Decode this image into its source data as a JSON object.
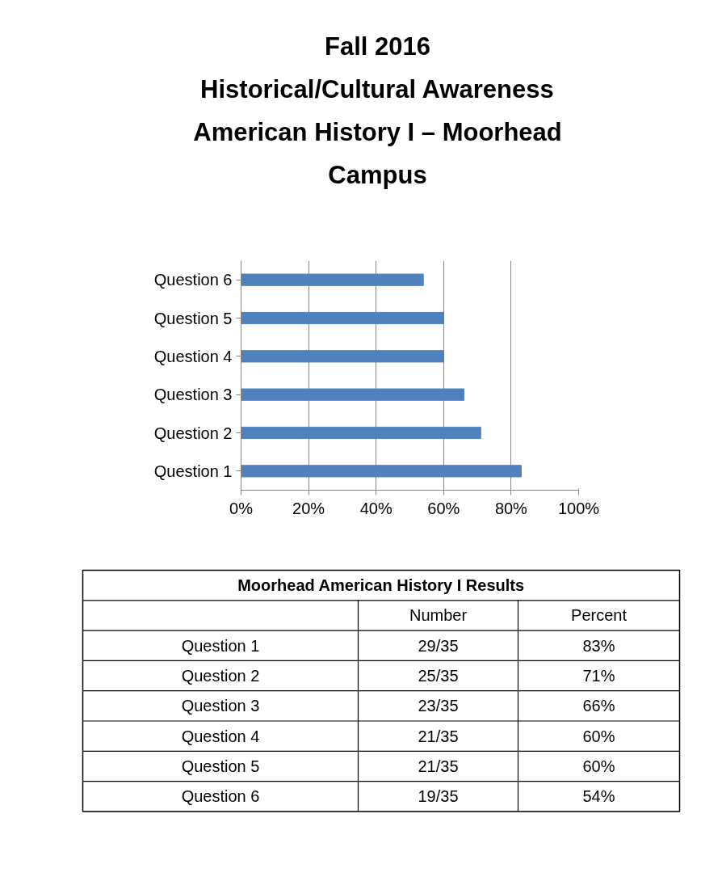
{
  "chart_data": {
    "type": "bar",
    "orientation": "horizontal",
    "title": "Fall 2016\nHistorical/Cultural Awareness\nAmerican History I – Moorhead\nCampus",
    "categories": [
      "Question 6",
      "Question 5",
      "Question 4",
      "Question 3",
      "Question 2",
      "Question 1"
    ],
    "values": [
      54,
      60,
      60,
      66,
      71,
      83
    ],
    "color": "#4f81bd",
    "xlim": [
      0,
      100
    ],
    "xticks": [
      {
        "value": 0,
        "label": "0%"
      },
      {
        "value": 20,
        "label": "20%"
      },
      {
        "value": 40,
        "label": "40%"
      },
      {
        "value": 60,
        "label": "60%"
      },
      {
        "value": 80,
        "label": "80%"
      },
      {
        "value": 100,
        "label": "100%"
      }
    ],
    "grid": "x",
    "annotations": [
      "Moorhead American History I Results",
      "Number",
      "Percent",
      "29/35",
      "25/35",
      "23/35",
      "21/35",
      "21/35",
      "19/35",
      "83%",
      "71%",
      "66%",
      "60%",
      "60%",
      "54%"
    ]
  }
}
